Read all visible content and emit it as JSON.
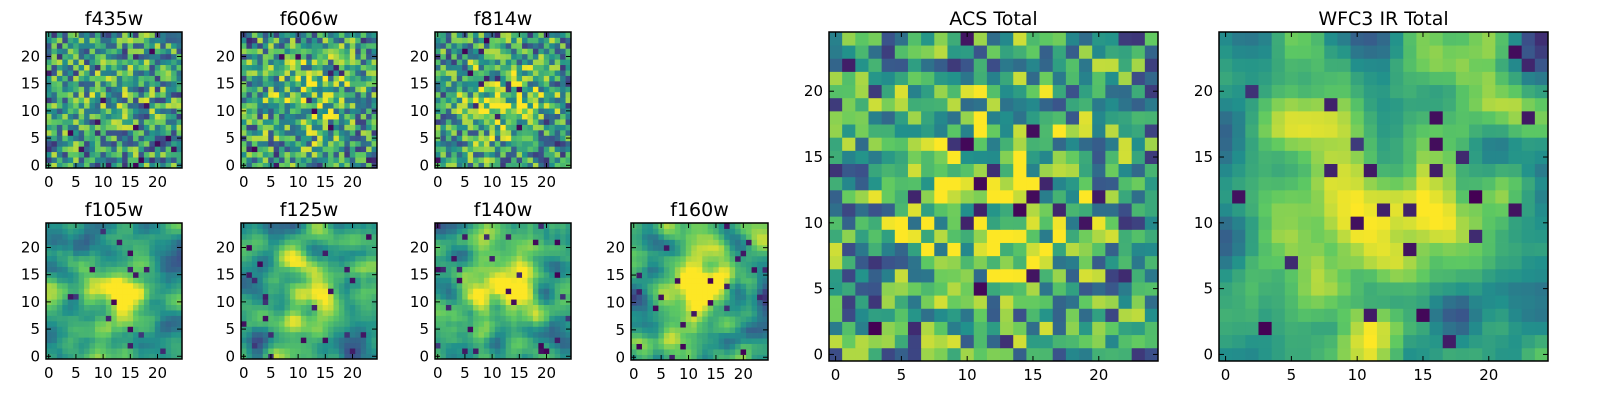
{
  "figure": {
    "background": "#ffffff",
    "colormap": "viridis",
    "colormap_stops": [
      "#440154",
      "#3b528b",
      "#21918c",
      "#5ec962",
      "#fde725"
    ]
  },
  "chart_data": [
    {
      "type": "heatmap",
      "title": "f435w",
      "grid_size": 25,
      "x_ticks": [
        "0",
        "5",
        "10",
        "15",
        "20"
      ],
      "y_ticks": [
        "0",
        "5",
        "10",
        "15",
        "20"
      ],
      "xlim": [
        -0.5,
        24.5
      ],
      "ylim": [
        -0.5,
        24.5
      ],
      "value_range": [
        0,
        1
      ],
      "texture": "noisy",
      "center_brightness": 0.1
    },
    {
      "type": "heatmap",
      "title": "f606w",
      "grid_size": 25,
      "x_ticks": [
        "0",
        "5",
        "10",
        "15",
        "20"
      ],
      "y_ticks": [
        "0",
        "5",
        "10",
        "15",
        "20"
      ],
      "xlim": [
        -0.5,
        24.5
      ],
      "ylim": [
        -0.5,
        24.5
      ],
      "value_range": [
        0,
        1
      ],
      "texture": "noisy",
      "center_brightness": 0.25
    },
    {
      "type": "heatmap",
      "title": "f814w",
      "grid_size": 25,
      "x_ticks": [
        "0",
        "5",
        "10",
        "15",
        "20"
      ],
      "y_ticks": [
        "0",
        "5",
        "10",
        "15",
        "20"
      ],
      "xlim": [
        -0.5,
        24.5
      ],
      "ylim": [
        -0.5,
        24.5
      ],
      "value_range": [
        0,
        1
      ],
      "texture": "noisy",
      "center_brightness": 0.3
    },
    {
      "type": "heatmap",
      "title": "f105w",
      "grid_size": 25,
      "x_ticks": [
        "0",
        "5",
        "10",
        "15",
        "20"
      ],
      "y_ticks": [
        "0",
        "5",
        "10",
        "15",
        "20"
      ],
      "xlim": [
        -0.5,
        24.5
      ],
      "ylim": [
        -0.5,
        24.5
      ],
      "value_range": [
        0,
        1
      ],
      "texture": "smooth",
      "center_brightness": 0.4
    },
    {
      "type": "heatmap",
      "title": "f125w",
      "grid_size": 25,
      "x_ticks": [
        "0",
        "5",
        "10",
        "15",
        "20"
      ],
      "y_ticks": [
        "0",
        "5",
        "10",
        "15",
        "20"
      ],
      "xlim": [
        -0.5,
        24.5
      ],
      "ylim": [
        -0.5,
        24.5
      ],
      "value_range": [
        0,
        1
      ],
      "texture": "smooth",
      "center_brightness": 0.4
    },
    {
      "type": "heatmap",
      "title": "f140w",
      "grid_size": 25,
      "x_ticks": [
        "0",
        "5",
        "10",
        "15",
        "20"
      ],
      "y_ticks": [
        "0",
        "5",
        "10",
        "15",
        "20"
      ],
      "xlim": [
        -0.5,
        24.5
      ],
      "ylim": [
        -0.5,
        24.5
      ],
      "value_range": [
        0,
        1
      ],
      "texture": "smooth",
      "center_brightness": 0.45
    },
    {
      "type": "heatmap",
      "title": "f160w",
      "grid_size": 25,
      "x_ticks": [
        "0",
        "5",
        "10",
        "15",
        "20"
      ],
      "y_ticks": [
        "0",
        "5",
        "10",
        "15",
        "20"
      ],
      "xlim": [
        -0.5,
        24.5
      ],
      "ylim": [
        -0.5,
        24.5
      ],
      "value_range": [
        0,
        1
      ],
      "texture": "smooth",
      "center_brightness": 0.45
    },
    {
      "type": "heatmap",
      "title": "ACS Total",
      "grid_size": 25,
      "x_ticks": [
        "0",
        "5",
        "10",
        "15",
        "20"
      ],
      "y_ticks": [
        "0",
        "5",
        "10",
        "15",
        "20"
      ],
      "xlim": [
        -0.5,
        24.5
      ],
      "ylim": [
        -0.5,
        24.5
      ],
      "value_range": [
        0,
        1
      ],
      "texture": "noisy",
      "center_brightness": 0.35
    },
    {
      "type": "heatmap",
      "title": "WFC3 IR Total",
      "grid_size": 25,
      "x_ticks": [
        "0",
        "5",
        "10",
        "15",
        "20"
      ],
      "y_ticks": [
        "0",
        "5",
        "10",
        "15",
        "20"
      ],
      "xlim": [
        -0.5,
        24.5
      ],
      "ylim": [
        -0.5,
        24.5
      ],
      "value_range": [
        0,
        1
      ],
      "texture": "smooth",
      "center_brightness": 0.5
    }
  ]
}
